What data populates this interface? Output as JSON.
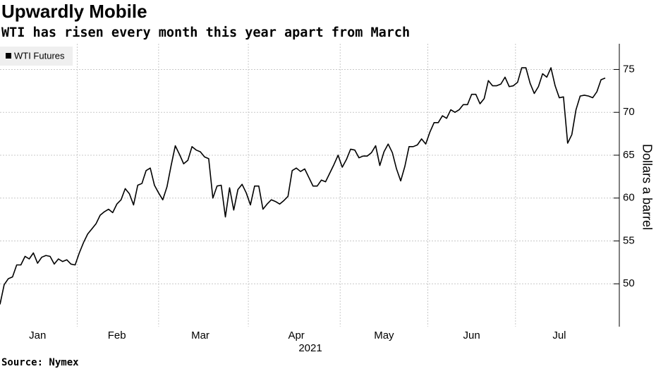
{
  "chart_data": {
    "type": "line",
    "title": "Upwardly Mobile",
    "subtitle": "WTI has risen every month this year apart from March",
    "source": "Source: Nymex",
    "xlabel": "2021",
    "ylabel": "Dollars a barrel",
    "legend": "top-left",
    "grid": true,
    "ylim": [
      45,
      78
    ],
    "yticks": [
      50,
      55,
      60,
      65,
      70,
      75
    ],
    "categories": [
      null,
      null,
      null,
      null,
      null,
      null,
      null,
      null,
      null,
      "Jan",
      null,
      null,
      null,
      null,
      null,
      null,
      null,
      null,
      null,
      null,
      null,
      null,
      null,
      null,
      null,
      null,
      null,
      null,
      "Feb",
      null,
      null,
      null,
      null,
      null,
      null,
      null,
      null,
      null,
      null,
      null,
      null,
      null,
      null,
      null,
      null,
      null,
      null,
      null,
      "Mar",
      null,
      null,
      null,
      null,
      null,
      null,
      null,
      null,
      null,
      null,
      null,
      null,
      null,
      null,
      null,
      null,
      null,
      null,
      null,
      null,
      null,
      null,
      "Apr",
      null,
      null,
      null,
      null,
      null,
      null,
      null,
      null,
      null,
      null,
      null,
      null,
      null,
      null,
      null,
      null,
      null,
      null,
      null,
      null,
      "May",
      null,
      null,
      null,
      null,
      null,
      null,
      null,
      null,
      null,
      null,
      null,
      null,
      null,
      null,
      null,
      null,
      null,
      null,
      null,
      null,
      "Jun",
      null,
      null,
      null,
      null,
      null,
      null,
      null,
      null,
      null,
      null,
      null,
      null,
      null,
      null,
      null,
      null,
      null,
      null,
      null,
      null,
      "Jul",
      null,
      null,
      null,
      null,
      null,
      null,
      null,
      null,
      null,
      null,
      null
    ],
    "series": [
      {
        "name": "WTI Futures",
        "color": "#000000",
        "values": [
          47.6,
          49.9,
          50.6,
          50.8,
          52.2,
          52.2,
          53.2,
          52.9,
          53.6,
          52.4,
          53.1,
          53.3,
          53.2,
          52.3,
          52.9,
          52.6,
          52.8,
          52.3,
          52.2,
          53.6,
          54.8,
          55.8,
          56.4,
          57.0,
          58.0,
          58.4,
          58.7,
          58.3,
          59.3,
          59.8,
          61.1,
          60.5,
          59.2,
          61.5,
          61.7,
          63.2,
          63.5,
          61.5,
          60.6,
          59.8,
          61.3,
          63.8,
          66.1,
          65.1,
          64.0,
          64.4,
          66.0,
          65.6,
          65.4,
          64.8,
          64.6,
          60.0,
          61.4,
          61.5,
          57.8,
          61.2,
          58.6,
          61.0,
          61.6,
          60.6,
          59.2,
          61.4,
          61.4,
          58.7,
          59.3,
          59.8,
          59.6,
          59.3,
          59.7,
          60.2,
          63.2,
          63.5,
          63.1,
          63.4,
          62.4,
          61.4,
          61.4,
          62.1,
          61.9,
          62.9,
          63.9,
          65.0,
          63.6,
          64.5,
          65.7,
          65.6,
          64.7,
          64.9,
          64.9,
          65.3,
          66.1,
          63.8,
          65.4,
          66.3,
          65.3,
          63.4,
          62.0,
          63.7,
          66.0,
          66.0,
          66.2,
          66.9,
          66.3,
          67.7,
          68.8,
          68.8,
          69.6,
          69.3,
          70.3,
          70.0,
          70.3,
          70.9,
          70.9,
          72.1,
          72.1,
          71.0,
          71.6,
          73.7,
          73.1,
          73.1,
          73.3,
          74.1,
          73.0,
          73.1,
          73.5,
          75.2,
          75.2,
          73.4,
          72.2,
          73.0,
          74.5,
          74.1,
          75.2,
          73.1,
          71.7,
          71.8,
          66.4,
          67.4,
          70.3,
          71.9,
          72.0,
          71.9,
          71.7,
          72.4,
          73.8,
          74.0
        ]
      }
    ]
  }
}
